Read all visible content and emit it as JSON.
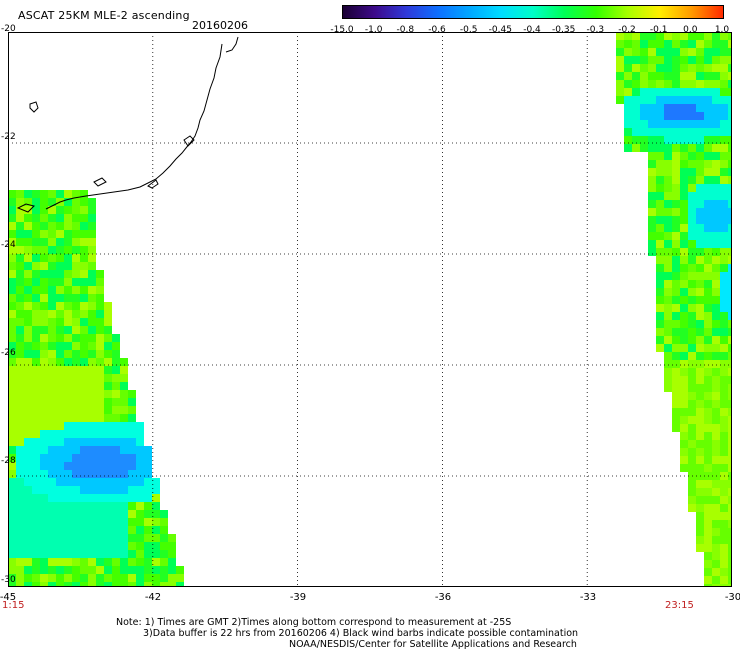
{
  "header": {
    "title": "ASCAT 25KM MLE-2 ascending",
    "date": "20160206"
  },
  "colorbar": {
    "labels": [
      "-15.0",
      "-1.0",
      "-0.8",
      "-0.6",
      "-0.5",
      "-0.45",
      "-0.4",
      "-0.35",
      "-0.3",
      "-0.2",
      "-0.1",
      "0.0",
      "1.0"
    ],
    "colors": [
      "#1a0033",
      "#3d0a8a",
      "#2f39d9",
      "#0d6fff",
      "#00a7ff",
      "#00ddff",
      "#00ffc8",
      "#00ff55",
      "#33ff00",
      "#a8ff00",
      "#ffee00",
      "#ff9b00",
      "#ff2a00"
    ]
  },
  "axes": {
    "y_labels": [
      "-20",
      "-22",
      "-24",
      "-26",
      "-28",
      "-30"
    ],
    "x_labels": [
      "-45",
      "-42",
      "-39",
      "-36",
      "-33",
      "-30"
    ],
    "lat_range": [
      -30,
      -20
    ],
    "lon_range": [
      -45,
      -30
    ]
  },
  "times": {
    "left": "1:15",
    "right": "23:15"
  },
  "notes": {
    "line1": "Note: 1) Times are GMT 2)Times along bottom correspond to measurement at -25S",
    "line2": "3)Data buffer is 22 hrs from 20160206 4) Black wind barbs indicate possible contamination",
    "line3": "NOAA/NESDIS/Center for Satellite Applications and Research"
  }
}
